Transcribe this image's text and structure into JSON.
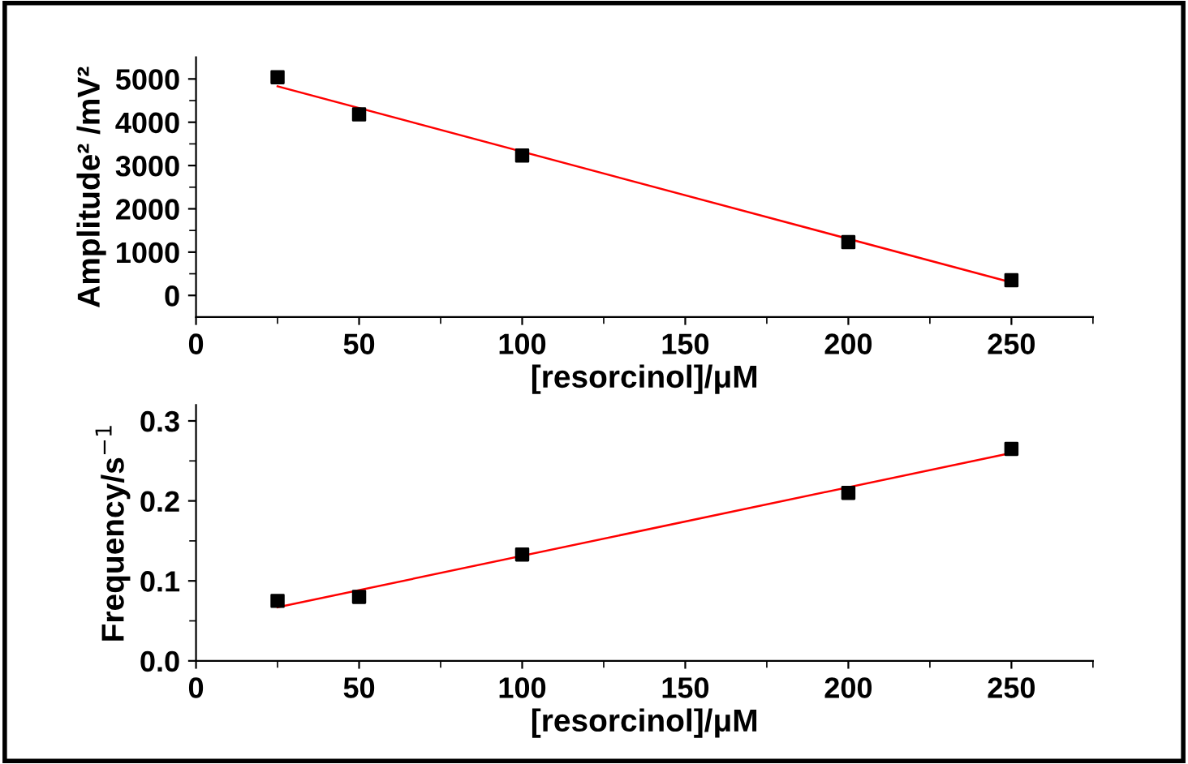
{
  "chart_data": [
    {
      "type": "scatter",
      "xlabel": "[resorcinol]/μM",
      "ylabel": "Amplitude² /mV²",
      "xlim": [
        0,
        275
      ],
      "xticks": [
        0,
        50,
        100,
        150,
        200,
        250
      ],
      "ylim": [
        -500,
        5500
      ],
      "yticks": [
        0,
        1000,
        2000,
        3000,
        4000,
        5000
      ],
      "marker": "square",
      "grid": false,
      "series": [
        {
          "color": "#000000",
          "x": [
            25,
            50,
            100,
            200,
            250
          ],
          "values": [
            5040,
            4180,
            3230,
            1230,
            350
          ]
        },
        {
          "type": "line",
          "color": "#ff0000",
          "x": [
            25,
            250
          ],
          "values": [
            4830,
            300
          ],
          "marker": "none",
          "line_style": "solid"
        }
      ]
    },
    {
      "type": "scatter",
      "xlabel": "[resorcinol]/μM",
      "ylabel": "Frequency/s$^{−1}$",
      "xlim": [
        0,
        275
      ],
      "xticks": [
        0,
        50,
        100,
        150,
        200,
        250
      ],
      "ylim": [
        0,
        0.32
      ],
      "yticks": [
        {
          "value": 0,
          "label": "0.0"
        },
        0.1,
        0.2,
        0.3
      ],
      "marker": "square",
      "grid": false,
      "series": [
        {
          "color": "#000000",
          "x": [
            25,
            50,
            100,
            200,
            250
          ],
          "values": [
            0.075,
            0.08,
            0.133,
            0.21,
            0.265
          ]
        },
        {
          "type": "line",
          "color": "#ff0000",
          "x": [
            25,
            250
          ],
          "values": [
            0.067,
            0.26
          ],
          "marker": "none",
          "line_style": "solid"
        }
      ]
    }
  ]
}
